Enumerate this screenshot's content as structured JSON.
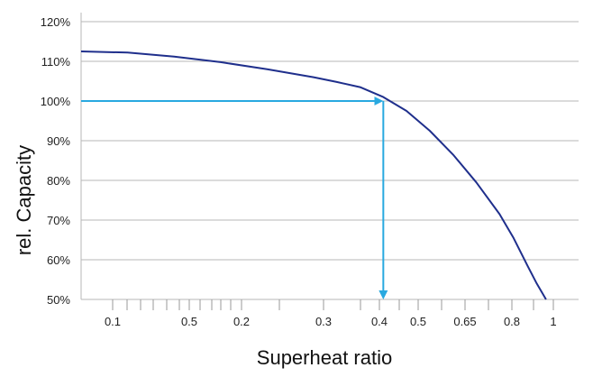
{
  "chart_data": {
    "type": "line",
    "title": "",
    "xlabel": "Superheat ratio",
    "ylabel": "rel. Capacity",
    "ylim": [
      50,
      120
    ],
    "y_ticks": [
      {
        "value": 50,
        "label": "50%"
      },
      {
        "value": 60,
        "label": "60%"
      },
      {
        "value": 70,
        "label": "70%"
      },
      {
        "value": 80,
        "label": "80%"
      },
      {
        "value": 90,
        "label": "90%"
      },
      {
        "value": 100,
        "label": "100%"
      },
      {
        "value": 110,
        "label": "110%"
      },
      {
        "value": 120,
        "label": "120%"
      }
    ],
    "x_ticks": [
      "0.1",
      "0.5",
      "0.2",
      "0.3",
      "0.4",
      "0.5",
      "0.65",
      "0.8",
      "1"
    ],
    "grid": true,
    "colors": {
      "curve": "#1f2f8c",
      "arrow": "#29a9e0",
      "grid": "#b7b7b7"
    },
    "series": [
      {
        "x": [
          0.0,
          0.1,
          0.2,
          0.3,
          0.4,
          0.5,
          0.55,
          0.6,
          0.65,
          0.7,
          0.75,
          0.8,
          0.85,
          0.9,
          0.93,
          0.96,
          0.98,
          1.0
        ],
        "y": [
          112.5,
          112.2,
          111.2,
          109.8,
          108.0,
          106.0,
          104.8,
          103.5,
          101.0,
          97.5,
          92.5,
          86.5,
          79.5,
          71.5,
          65.5,
          58.5,
          54.0,
          50.0
        ]
      }
    ],
    "annotation": {
      "x": 0.65,
      "y": 100
    }
  }
}
